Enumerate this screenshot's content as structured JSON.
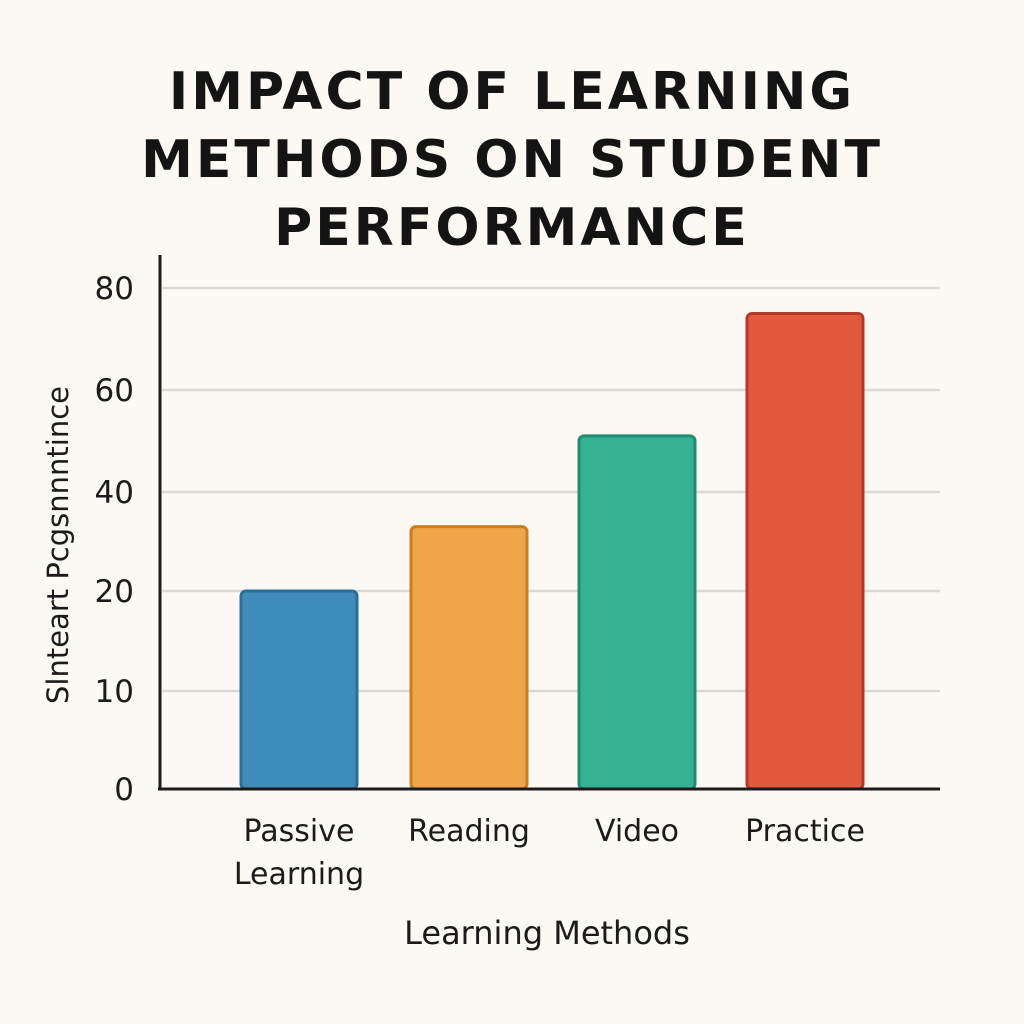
{
  "chart_data": {
    "type": "bar",
    "title_lines": [
      "IMPACT OF LEARNING",
      "METHODS ON STUDENT",
      "PERFORMANCE"
    ],
    "categories": [
      "Passive Learning",
      "Reading",
      "Video",
      "Practice"
    ],
    "category_lines": [
      [
        "Passive",
        "Learning"
      ],
      [
        "Reading"
      ],
      [
        "Video"
      ],
      [
        "Practice"
      ]
    ],
    "values": [
      20,
      33,
      51,
      75
    ],
    "xlabel": "Learning Methods",
    "ylabel": "Slnteart Pcgѕnnntince",
    "y_ticks": [
      {
        "value": 0,
        "label": "0"
      },
      {
        "value": 10,
        "label": "10"
      },
      {
        "value": 20,
        "label": "20"
      },
      {
        "value": 40,
        "label": "40"
      },
      {
        "value": 60,
        "label": "60"
      },
      {
        "value": 80,
        "label": "80"
      }
    ],
    "ylim": [
      0,
      80
    ],
    "grid": true,
    "colors": [
      "#3f8cbc",
      "#f1a54a",
      "#34b292",
      "#e2593f"
    ],
    "edge_colors": [
      "#2c6f98",
      "#c97d24",
      "#228b70",
      "#b23b27"
    ]
  }
}
